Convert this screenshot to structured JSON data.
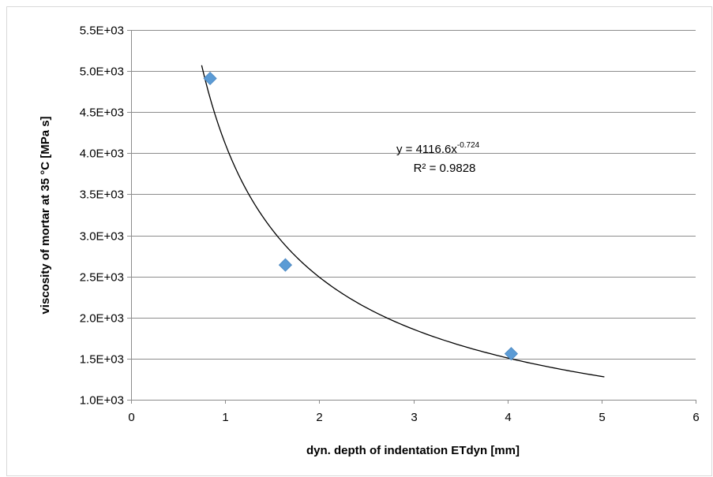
{
  "chart_data": {
    "type": "scatter",
    "xlabel": "dyn. depth of indentation ETdyn [mm]",
    "ylabel": "viscosity of mortar at 35 °C [MPa s]",
    "xlim": [
      0,
      6
    ],
    "ylim": [
      1000,
      5500
    ],
    "x_ticks": [
      "0",
      "1",
      "2",
      "3",
      "4",
      "5",
      "6"
    ],
    "y_ticks": [
      "1.0E+03",
      "1.5E+03",
      "2.0E+03",
      "2.5E+03",
      "3.0E+03",
      "3.5E+03",
      "4.0E+03",
      "4.5E+03",
      "5.0E+03",
      "5.5E+03"
    ],
    "grid": "horizontal",
    "legend": "none",
    "marker_color": "#5b9bd5",
    "trendline_color": "#000000",
    "series": [
      {
        "x": [
          0.84,
          1.64,
          4.04
        ],
        "y": [
          4910,
          2640,
          1560
        ]
      }
    ],
    "trendline": {
      "type": "power",
      "a": 4116.6,
      "b": -0.724,
      "x_range": [
        0.75,
        5.03
      ],
      "equation_prefix": "y = 4116.6x",
      "equation_exponent": "-0.724",
      "r_squared_label": "R² = 0.9828"
    }
  }
}
